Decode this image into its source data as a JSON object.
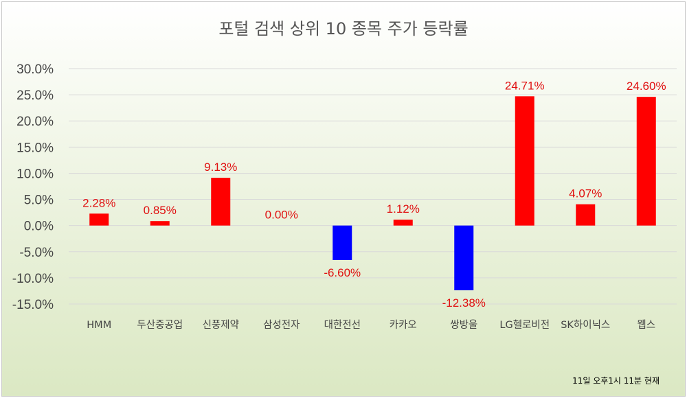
{
  "chart_data": {
    "type": "bar",
    "title": "포털 검색 상위 10 종목 주가 등락률",
    "categories": [
      "HMM",
      "두산중공업",
      "신풍제약",
      "삼성전자",
      "대한전선",
      "카카오",
      "쌍방울",
      "LG헬로비전",
      "SK하이닉스",
      "웹스"
    ],
    "values": [
      2.28,
      0.85,
      9.13,
      0.0,
      -6.6,
      1.12,
      -12.38,
      24.71,
      4.07,
      24.6
    ],
    "data_labels": [
      "2.28%",
      "0.85%",
      "9.13%",
      "0.00%",
      "-6.60%",
      "1.12%",
      "-12.38%",
      "24.71%",
      "4.07%",
      "24.60%"
    ],
    "ylim": [
      -15,
      30
    ],
    "yticks": [
      30,
      25,
      20,
      15,
      10,
      5,
      0,
      -5,
      -10,
      -15
    ],
    "ytick_labels": [
      "30.0%",
      "25.0%",
      "20.0%",
      "15.0%",
      "10.0%",
      "5.0%",
      "0.0%",
      "-5.0%",
      "-10.0%",
      "-15.0%"
    ],
    "xlabel": "",
    "ylabel": "",
    "grid": true,
    "colors": {
      "positive": "#ff0000",
      "negative": "#0000ff",
      "grid": "#d9d9d9",
      "label": "#e01010"
    }
  },
  "note": "11일 오후1시 11분 현재"
}
